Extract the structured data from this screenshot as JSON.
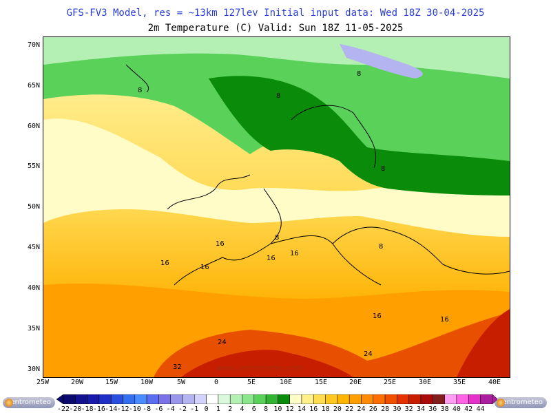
{
  "header": {
    "line1": "GFS-FV3 Model, res = ~13km 127lev   Initial input data: Wed 18Z 30-04-2025",
    "line2": "2m Temperature (C)  Valid: Sun 18Z 11-05-2025"
  },
  "map": {
    "lat_labels": [
      "70N",
      "65N",
      "60N",
      "55N",
      "50N",
      "45N",
      "40N",
      "35N",
      "30N"
    ],
    "lon_labels": [
      "25W",
      "20W",
      "15W",
      "10W",
      "5W",
      "0",
      "5E",
      "10E",
      "15E",
      "20E",
      "25E",
      "30E",
      "35E",
      "40E"
    ],
    "contour_labels": [
      "8",
      "8",
      "8",
      "8",
      "8",
      "8",
      "16",
      "16",
      "16",
      "16",
      "16",
      "16",
      "16",
      "24",
      "24",
      "32"
    ],
    "watermark": "www.centrometeo.com"
  },
  "legend": {
    "labels": [
      "-22",
      "-20",
      "-18",
      "-16",
      "-14",
      "-12",
      "-10",
      "-8",
      "-6",
      "-4",
      "-2",
      "-1",
      "0",
      "1",
      "2",
      "4",
      "6",
      "8",
      "10",
      "12",
      "14",
      "16",
      "18",
      "20",
      "22",
      "24",
      "26",
      "28",
      "30",
      "32",
      "34",
      "36",
      "38",
      "40",
      "42",
      "44"
    ],
    "colors": [
      "#0a0a6e",
      "#12128c",
      "#1a1aaa",
      "#1f2fc8",
      "#2850dc",
      "#3270f0",
      "#4a8cff",
      "#5c6ef0",
      "#7a72e6",
      "#9a96ea",
      "#b4b4f0",
      "#d2d2fa",
      "#ffffff",
      "#dcf8dc",
      "#b4f0b4",
      "#8ce68c",
      "#5ad25a",
      "#32b432",
      "#0a8c0a",
      "#fffcc8",
      "#fff08c",
      "#ffdc50",
      "#ffc81e",
      "#ffb400",
      "#ffa000",
      "#ff8c00",
      "#ff6e00",
      "#f05000",
      "#e63200",
      "#c81e00",
      "#aa0a0a",
      "#821e1e",
      "#ff9ef0",
      "#ff64e6",
      "#e632c8",
      "#aa1ea0"
    ]
  },
  "branding": {
    "left_logo": "centrometeo",
    "right_logo": "centrometeo"
  }
}
